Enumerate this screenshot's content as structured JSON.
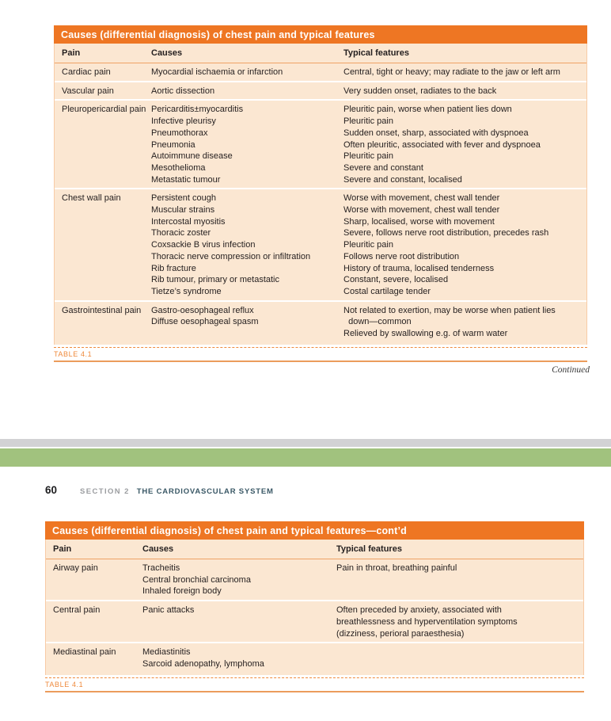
{
  "page": {
    "continued_label": "Continued",
    "page_number": "60",
    "section_label": "SECTION 2",
    "section_title": "THE CARDIOVASCULAR SYSTEM"
  },
  "colors": {
    "accent_orange": "#ee7623",
    "table_body_peach": "#fbe7d2",
    "caption_orange": "#ef8a3c",
    "band_gray": "#d2d2d4",
    "band_green": "#a1c27e",
    "section_title_slate": "#3a5866"
  },
  "table1": {
    "title": "Causes (differential diagnosis) of chest pain and typical features",
    "caption": "TABLE 4.1",
    "columns": [
      "Pain",
      "Causes",
      "Typical features"
    ],
    "rows": [
      {
        "pain": "Cardiac pain",
        "causes": [
          "Myocardial ischaemia or infarction"
        ],
        "features": [
          "Central, tight or heavy; may radiate to the jaw or left arm"
        ]
      },
      {
        "pain": "Vascular pain",
        "causes": [
          "Aortic dissection"
        ],
        "features": [
          "Very sudden onset, radiates to the back"
        ]
      },
      {
        "pain": "Pleuropericardial pain",
        "causes": [
          "Pericarditis±myocarditis",
          "Infective pleurisy",
          "Pneumothorax",
          "Pneumonia",
          "Autoimmune disease",
          "Mesothelioma",
          "Metastatic tumour"
        ],
        "features": [
          "Pleuritic pain, worse when patient lies down",
          "Pleuritic pain",
          "Sudden onset, sharp, associated with dyspnoea",
          "Often pleuritic, associated with fever and dyspnoea",
          "Pleuritic pain",
          "Severe and constant",
          "Severe and constant, localised"
        ]
      },
      {
        "pain": "Chest wall pain",
        "causes": [
          "Persistent cough",
          "Muscular strains",
          "Intercostal myositis",
          "Thoracic zoster",
          "Coxsackie B virus infection",
          "Thoracic nerve compression or infiltration",
          "Rib fracture",
          "Rib tumour, primary or metastatic",
          "Tietze’s syndrome"
        ],
        "features": [
          "Worse with movement, chest wall tender",
          "Worse with movement, chest wall tender",
          "Sharp, localised, worse with movement",
          "Severe, follows nerve root distribution, precedes rash",
          "Pleuritic pain",
          "Follows nerve root distribution",
          "History of trauma, localised tenderness",
          "Constant, severe, localised",
          "Costal cartilage tender"
        ]
      },
      {
        "pain": "Gastrointestinal pain",
        "causes": [
          "Gastro-oesophageal reflux",
          "Diffuse oesophageal spasm"
        ],
        "features": [
          "Not related to exertion, may be worse when patient lies",
          "  down—common",
          "Relieved by swallowing e.g. of warm water"
        ]
      }
    ]
  },
  "table2": {
    "title": "Causes (differential diagnosis) of chest pain and typical features—cont’d",
    "caption": "TABLE 4.1",
    "columns": [
      "Pain",
      "Causes",
      "Typical features"
    ],
    "rows": [
      {
        "pain": "Airway pain",
        "causes": [
          "Tracheitis",
          "Central bronchial carcinoma",
          "Inhaled foreign body"
        ],
        "features": [
          "Pain in throat, breathing painful"
        ]
      },
      {
        "pain": "Central pain",
        "causes": [
          "Panic attacks"
        ],
        "features": [
          "Often preceded by anxiety, associated with",
          "breathlessness and hyperventilation symptoms",
          "(dizziness, perioral paraesthesia)"
        ]
      },
      {
        "pain": "Mediastinal pain",
        "causes": [
          "Mediastinitis",
          "Sarcoid adenopathy, lymphoma"
        ],
        "features": []
      }
    ]
  }
}
